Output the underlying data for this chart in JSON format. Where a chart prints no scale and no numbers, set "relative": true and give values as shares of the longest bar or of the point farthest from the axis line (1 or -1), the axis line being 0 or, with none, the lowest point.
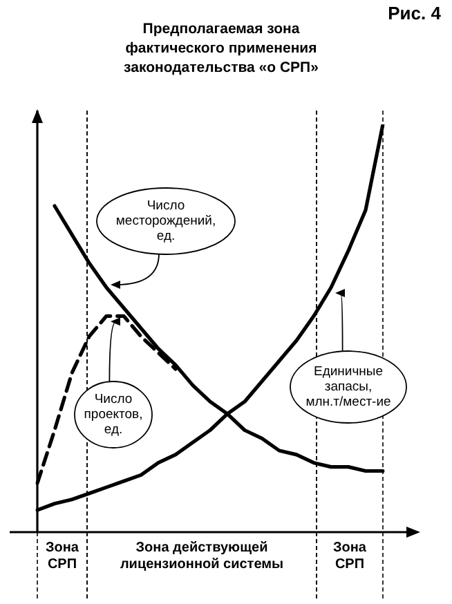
{
  "chart_data": {
    "type": "line",
    "title": "Предполагаемая зона фактического применения законодательства «о СРП»",
    "relative": true,
    "tick_labels": false,
    "grid": "x",
    "legend": false,
    "marker": "none",
    "annotations": [
      "Рис. 4",
      "Зона СРП",
      "Зона действующей лицензионной системы",
      "Зона СРП"
    ],
    "categories": [
      null,
      null,
      null,
      null,
      null,
      null,
      null,
      null,
      null,
      null,
      null,
      null,
      null,
      null,
      null,
      null,
      null,
      null,
      null,
      null,
      null
    ],
    "series": [
      {
        "name": "Число месторождений, ед.",
        "color": "#000000",
        "values": [
          null,
          0.8,
          0.73,
          0.66,
          0.6,
          0.55,
          0.5,
          0.45,
          0.41,
          0.36,
          0.32,
          0.29,
          0.25,
          0.23,
          0.2,
          0.19,
          0.17,
          0.16,
          0.16,
          0.15,
          0.15
        ]
      },
      {
        "name": "Число проектов, ед.",
        "color": "#000000",
        "line_style": "dashed",
        "values": [
          0.12,
          0.25,
          0.39,
          0.48,
          0.53,
          0.53,
          0.48,
          0.44,
          0.4,
          null,
          null,
          null,
          null,
          null,
          null,
          null,
          null,
          null,
          null,
          null,
          null
        ]
      },
      {
        "name": "Единичные запасы, млн.т/мест-ие",
        "color": "#000000",
        "values": [
          0.054,
          0.07,
          0.08,
          0.095,
          0.11,
          0.125,
          0.14,
          0.17,
          0.19,
          0.22,
          0.25,
          0.29,
          0.32,
          0.37,
          0.42,
          0.47,
          0.53,
          0.6,
          0.69,
          0.79,
          1
        ]
      }
    ]
  }
}
